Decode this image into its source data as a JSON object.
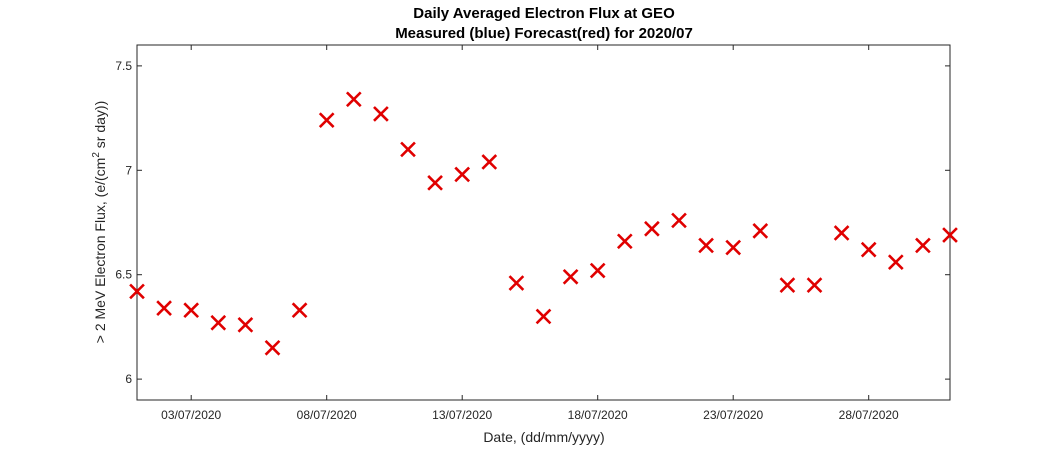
{
  "chart_data": {
    "type": "scatter",
    "title": "Daily Averaged Electron Flux at GEO",
    "subtitle": "Measured (blue) Forecast(red) for 2020/07",
    "xlabel": "Date, (dd/mm/yyyy)",
    "ylabel_main": "> 2 MeV Electron Flux, (e/(cm",
    "ylabel_sup": "2",
    "ylabel_end": " sr day))",
    "xlim": [
      "2020-07-01",
      "2020-07-31"
    ],
    "ylim": [
      5.9,
      7.6
    ],
    "yticks": [
      6,
      6.5,
      7,
      7.5
    ],
    "ytick_labels": [
      "6",
      "6.5",
      "7",
      "7.5"
    ],
    "xticks": [
      "2020-07-03",
      "2020-07-08",
      "2020-07-13",
      "2020-07-18",
      "2020-07-23",
      "2020-07-28"
    ],
    "xtick_labels": [
      "03/07/2020",
      "08/07/2020",
      "13/07/2020",
      "18/07/2020",
      "23/07/2020",
      "28/07/2020"
    ],
    "grid": false,
    "marker": "x",
    "series": [
      {
        "color": "#e00000",
        "points": [
          {
            "x": "2020-07-01",
            "y": 6.42
          },
          {
            "x": "2020-07-02",
            "y": 6.34
          },
          {
            "x": "2020-07-03",
            "y": 6.33
          },
          {
            "x": "2020-07-04",
            "y": 6.27
          },
          {
            "x": "2020-07-05",
            "y": 6.26
          },
          {
            "x": "2020-07-06",
            "y": 6.15
          },
          {
            "x": "2020-07-07",
            "y": 6.33
          },
          {
            "x": "2020-07-08",
            "y": 7.24
          },
          {
            "x": "2020-07-09",
            "y": 7.34
          },
          {
            "x": "2020-07-10",
            "y": 7.27
          },
          {
            "x": "2020-07-11",
            "y": 7.1
          },
          {
            "x": "2020-07-12",
            "y": 6.94
          },
          {
            "x": "2020-07-13",
            "y": 6.98
          },
          {
            "x": "2020-07-14",
            "y": 7.04
          },
          {
            "x": "2020-07-15",
            "y": 6.46
          },
          {
            "x": "2020-07-16",
            "y": 6.3
          },
          {
            "x": "2020-07-17",
            "y": 6.49
          },
          {
            "x": "2020-07-18",
            "y": 6.52
          },
          {
            "x": "2020-07-19",
            "y": 6.66
          },
          {
            "x": "2020-07-20",
            "y": 6.72
          },
          {
            "x": "2020-07-21",
            "y": 6.76
          },
          {
            "x": "2020-07-22",
            "y": 6.64
          },
          {
            "x": "2020-07-23",
            "y": 6.63
          },
          {
            "x": "2020-07-24",
            "y": 6.71
          },
          {
            "x": "2020-07-25",
            "y": 6.45
          },
          {
            "x": "2020-07-26",
            "y": 6.45
          },
          {
            "x": "2020-07-27",
            "y": 6.7
          },
          {
            "x": "2020-07-28",
            "y": 6.62
          },
          {
            "x": "2020-07-29",
            "y": 6.56
          },
          {
            "x": "2020-07-30",
            "y": 6.64
          },
          {
            "x": "2020-07-31",
            "y": 6.69
          }
        ]
      }
    ]
  }
}
